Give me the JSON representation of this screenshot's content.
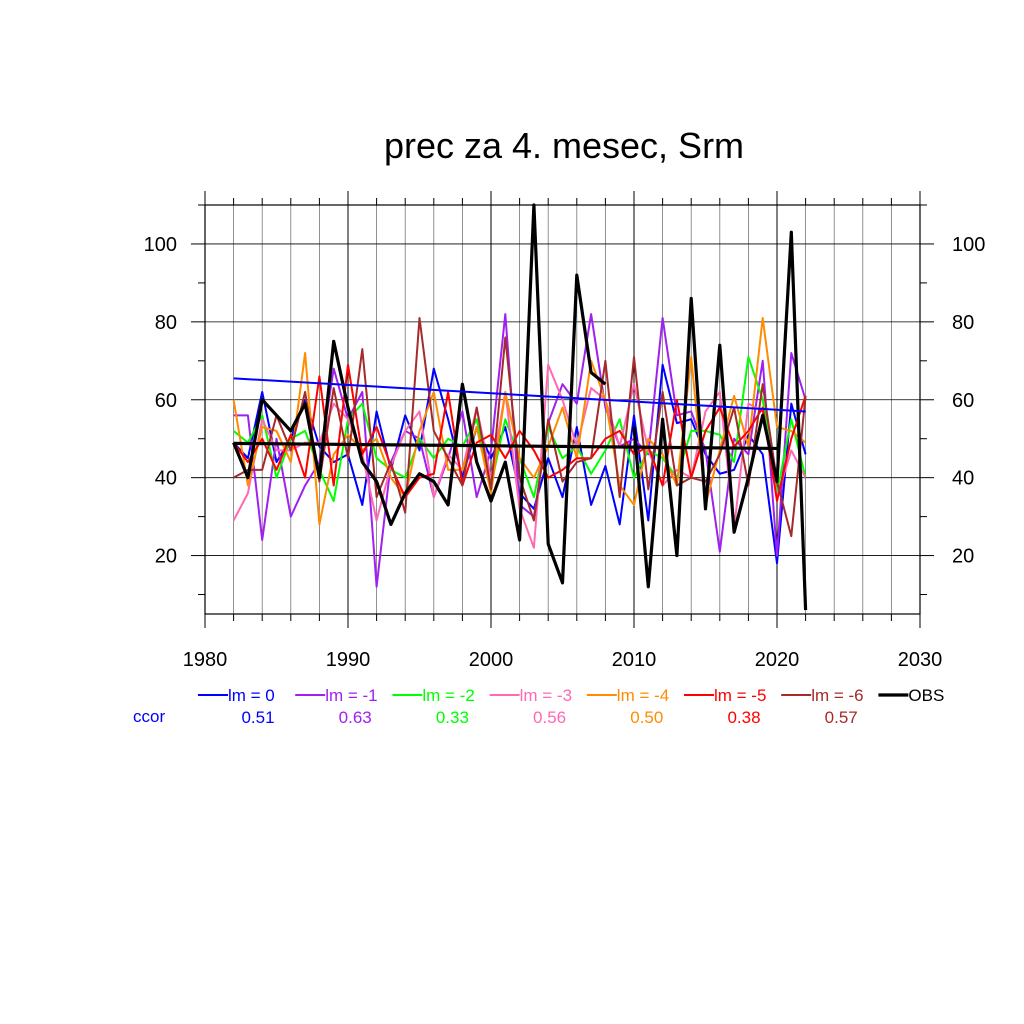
{
  "chart_data": {
    "type": "line",
    "title": "prec za 4. mesec, Srm",
    "xlabel": "",
    "ylabel": "",
    "xlim": [
      1980,
      2030
    ],
    "ylim": [
      5,
      110
    ],
    "x_ticks": [
      "1980",
      "1990",
      "2000",
      "2010",
      "2020",
      "2030"
    ],
    "y_ticks": [
      "20",
      "40",
      "60",
      "80",
      "100"
    ],
    "grid": true,
    "legend_position": "bottom",
    "ccor_label": "ccor",
    "x": [
      1982,
      1983,
      1984,
      1985,
      1986,
      1987,
      1988,
      1989,
      1990,
      1991,
      1992,
      1993,
      1994,
      1995,
      1996,
      1997,
      1998,
      1999,
      2000,
      2001,
      2002,
      2003,
      2004,
      2005,
      2006,
      2007,
      2008,
      2009,
      2010,
      2011,
      2012,
      2013,
      2014,
      2015,
      2016,
      2017,
      2018,
      2019,
      2020,
      2021,
      2022
    ],
    "series": [
      {
        "name": "lm = 0",
        "ccor": "0.51",
        "color": "#0000ff",
        "values": [
          49,
          45,
          62,
          44,
          50,
          60,
          48,
          44,
          46,
          33,
          57,
          42,
          56,
          47,
          68,
          55,
          40,
          53,
          45,
          53,
          36,
          32,
          45,
          35,
          53,
          33,
          43,
          28,
          56,
          29,
          69,
          54,
          55,
          46,
          41,
          42,
          51,
          46,
          18,
          59,
          46
        ]
      },
      {
        "name": "lm = -1",
        "ccor": "0.63",
        "color": "#a020f0",
        "values": [
          56,
          56,
          24,
          50,
          30,
          38,
          44,
          68,
          55,
          62,
          12,
          44,
          52,
          50,
          35,
          45,
          57,
          35,
          47,
          82,
          33,
          30,
          54,
          64,
          59,
          82,
          58,
          48,
          50,
          46,
          81,
          56,
          57,
          47,
          21,
          50,
          46,
          70,
          20,
          72,
          60
        ]
      },
      {
        "name": "lm = -2",
        "ccor": "0.33",
        "color": "#00ff00",
        "values": [
          52,
          49,
          56,
          40,
          50,
          52,
          42,
          34,
          55,
          59,
          45,
          42,
          40,
          50,
          45,
          50,
          48,
          55,
          38,
          55,
          45,
          35,
          53,
          45,
          48,
          41,
          47,
          55,
          40,
          47,
          45,
          40,
          52,
          52,
          51,
          44,
          71,
          60,
          36,
          55,
          40
        ]
      },
      {
        "name": "lm = -3",
        "ccor": "0.56",
        "color": "#ff69b4",
        "values": [
          29,
          36,
          55,
          47,
          47,
          49,
          49,
          59,
          55,
          46,
          29,
          43,
          52,
          57,
          35,
          46,
          42,
          58,
          40,
          62,
          32,
          22,
          69,
          60,
          48,
          63,
          60,
          48,
          64,
          47,
          38,
          42,
          40,
          57,
          62,
          27,
          59,
          57,
          35,
          47,
          40
        ]
      },
      {
        "name": "lm = -4",
        "ccor": "0.50",
        "color": "#ff8c00",
        "values": [
          60,
          38,
          53,
          52,
          44,
          72,
          28,
          46,
          51,
          47,
          50,
          40,
          35,
          52,
          62,
          42,
          42,
          53,
          36,
          62,
          45,
          40,
          48,
          58,
          45,
          70,
          60,
          38,
          33,
          50,
          46,
          38,
          71,
          33,
          47,
          61,
          48,
          81,
          53,
          52,
          49
        ]
      },
      {
        "name": "lm = -5",
        "ccor": "0.38",
        "color": "#ff0000",
        "values": [
          49,
          44,
          50,
          42,
          51,
          40,
          66,
          38,
          69,
          46,
          53,
          43,
          35,
          40,
          41,
          62,
          38,
          49,
          51,
          45,
          52,
          47,
          40,
          42,
          45,
          45,
          50,
          52,
          46,
          48,
          38,
          60,
          40,
          52,
          58,
          48,
          52,
          58,
          34,
          50,
          61
        ]
      },
      {
        "name": "lm = -6",
        "ccor": "0.57",
        "color": "#a52a2a",
        "values": [
          40,
          42,
          42,
          56,
          47,
          62,
          39,
          63,
          45,
          73,
          35,
          44,
          31,
          81,
          52,
          45,
          38,
          58,
          37,
          76,
          40,
          29,
          55,
          39,
          44,
          45,
          70,
          35,
          71,
          37,
          62,
          38,
          40,
          39,
          46,
          58,
          38,
          64,
          39,
          25,
          61
        ]
      },
      {
        "name": "OBS",
        "ccor": "",
        "color": "#000000",
        "values": [
          49,
          40,
          60,
          56,
          52,
          59,
          40,
          75,
          58,
          44,
          39,
          28,
          36,
          41,
          39,
          33,
          64,
          44,
          34,
          44,
          24,
          110,
          23,
          13,
          92,
          67,
          64,
          null,
          53,
          12,
          55,
          20,
          86,
          32,
          74,
          26,
          40,
          56,
          39,
          103,
          6
        ]
      }
    ],
    "trend_lines": [
      {
        "name": "lm = 0 trend",
        "color": "#0000ff",
        "x": [
          1982,
          2022
        ],
        "y": [
          65.5,
          57
        ]
      },
      {
        "name": "OBS trend",
        "color": "#000000",
        "x": [
          1982,
          2020
        ],
        "y": [
          48.8,
          47.5
        ]
      }
    ]
  }
}
